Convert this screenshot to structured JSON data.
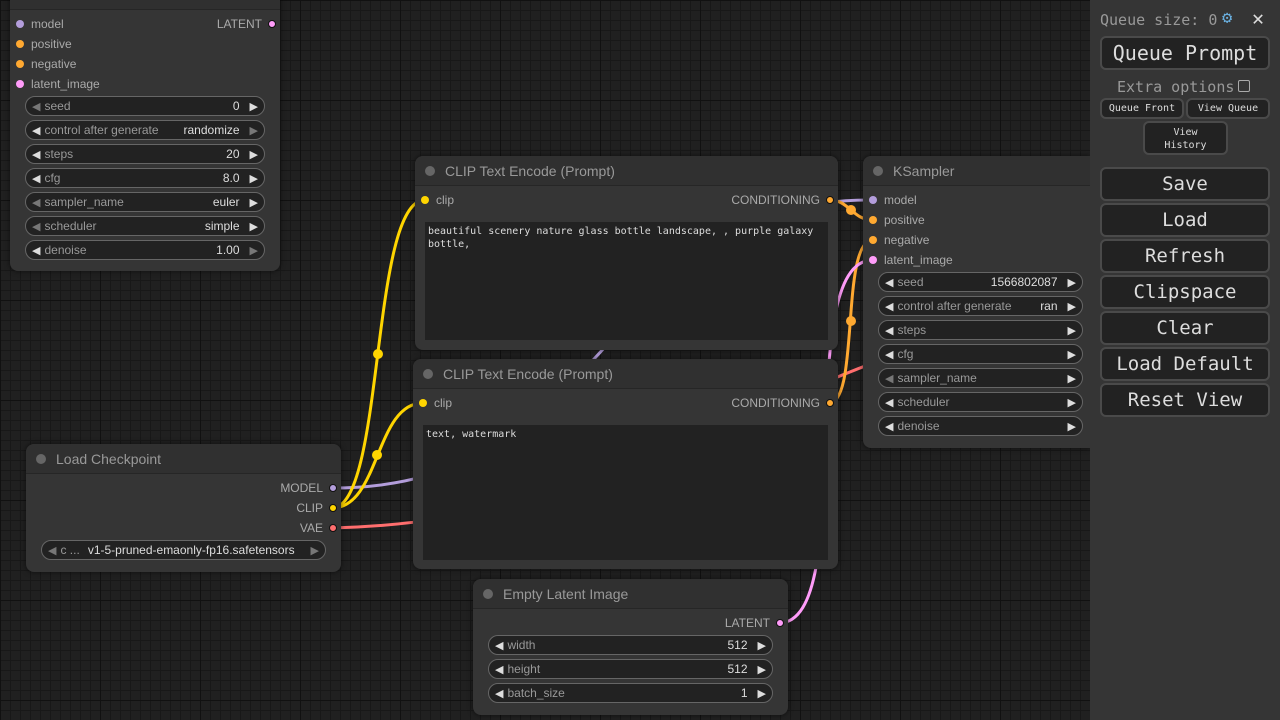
{
  "nodes": {
    "ksampler_left": {
      "inputs": [
        "model",
        "positive",
        "negative",
        "latent_image"
      ],
      "output": "LATENT",
      "widgets": [
        {
          "label": "seed",
          "value": "0"
        },
        {
          "label": "control after generate",
          "value": "randomize"
        },
        {
          "label": "steps",
          "value": "20"
        },
        {
          "label": "cfg",
          "value": "8.0"
        },
        {
          "label": "sampler_name",
          "value": "euler"
        },
        {
          "label": "scheduler",
          "value": "simple"
        },
        {
          "label": "denoise",
          "value": "1.00"
        }
      ]
    },
    "clip_pos": {
      "title": "CLIP Text Encode (Prompt)",
      "input": "clip",
      "output": "CONDITIONING",
      "text": "beautiful scenery nature glass bottle landscape, , purple galaxy bottle,"
    },
    "clip_neg": {
      "title": "CLIP Text Encode (Prompt)",
      "input": "clip",
      "output": "CONDITIONING",
      "text": "text, watermark"
    },
    "checkpoint": {
      "title": "Load Checkpoint",
      "outputs": [
        "MODEL",
        "CLIP",
        "VAE"
      ],
      "widget": {
        "label": "c ...",
        "value": "v1-5-pruned-emaonly-fp16.safetensors"
      }
    },
    "latent": {
      "title": "Empty Latent Image",
      "output": "LATENT",
      "widgets": [
        {
          "label": "width",
          "value": "512"
        },
        {
          "label": "height",
          "value": "512"
        },
        {
          "label": "batch_size",
          "value": "1"
        }
      ]
    },
    "ksampler": {
      "title": "KSampler",
      "inputs": [
        "model",
        "positive",
        "negative",
        "latent_image"
      ],
      "widgets": [
        {
          "label": "seed",
          "value": "1566802087"
        },
        {
          "label": "control after generate",
          "value": "ran"
        },
        {
          "label": "steps",
          "value": ""
        },
        {
          "label": "cfg",
          "value": ""
        },
        {
          "label": "sampler_name",
          "value": ""
        },
        {
          "label": "scheduler",
          "value": ""
        },
        {
          "label": "denoise",
          "value": ""
        }
      ]
    }
  },
  "panel": {
    "queue_size": "Queue size: 0",
    "queue_prompt": "Queue Prompt",
    "extra_options": "Extra options",
    "queue_front": "Queue Front",
    "view_queue": "View Queue",
    "view_history": "View History",
    "buttons": [
      "Save",
      "Load",
      "Refresh",
      "Clipspace",
      "Clear",
      "Load Default",
      "Reset View"
    ]
  },
  "colors": {
    "model": "#b39ddb",
    "clip": "#ffd500",
    "conditioning": "#ffa931",
    "latent": "#ff9cf9",
    "vae": "#ff6e6e"
  }
}
